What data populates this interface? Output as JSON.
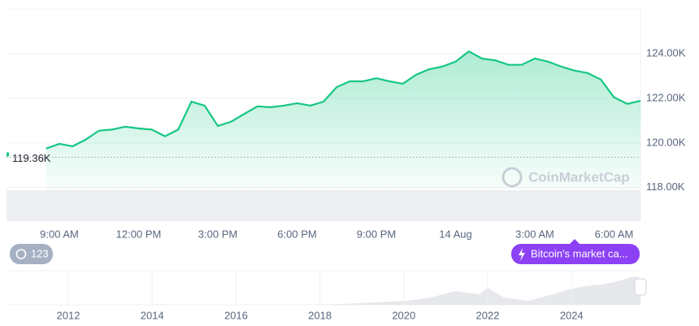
{
  "chart_data": {
    "type": "area",
    "categories": [
      null,
      null,
      null,
      null,
      "9:00 AM",
      null,
      null,
      null,
      null,
      null,
      "12:00 PM",
      null,
      null,
      null,
      null,
      null,
      "3:00 PM",
      null,
      null,
      null,
      null,
      null,
      "6:00 PM",
      null,
      null,
      null,
      null,
      null,
      "9:00 PM",
      null,
      null,
      null,
      null,
      null,
      "14 Aug",
      null,
      null,
      null,
      null,
      null,
      "3:00 AM",
      null,
      null,
      null,
      null,
      null,
      "6:00 AM",
      null,
      null
    ],
    "series": [
      {
        "color": "#16c784",
        "values": [
          null,
          null,
          null,
          119750,
          119960,
          119850,
          120150,
          120550,
          120600,
          120730,
          120650,
          120600,
          120300,
          120600,
          121850,
          121670,
          120760,
          120950,
          121300,
          121640,
          121600,
          121670,
          121780,
          121670,
          121850,
          122500,
          122760,
          122760,
          122900,
          122760,
          122650,
          123050,
          123300,
          123420,
          123640,
          124100,
          123780,
          123700,
          123500,
          123500,
          123780,
          123640,
          123420,
          123240,
          123130,
          122840,
          122040,
          121750,
          121890
        ]
      }
    ],
    "ylim": [
      116500,
      126000
    ],
    "yticks": [
      {
        "value": 118000,
        "label": "118.00K"
      },
      {
        "value": 120000,
        "label": "120.00K"
      },
      {
        "value": 122000,
        "label": "122.00K"
      },
      {
        "value": 124000,
        "label": "124.00K"
      }
    ],
    "grid": true,
    "reference": {
      "value": 119360,
      "label": "119.36K"
    },
    "watermark": "CoinMarketCap",
    "history_badge": "123",
    "event_badge": "Bitcoin's market ca...",
    "navigator": {
      "labels": [
        "2012",
        "2014",
        "2016",
        "2018",
        "2020",
        "2022",
        "2024"
      ]
    }
  }
}
